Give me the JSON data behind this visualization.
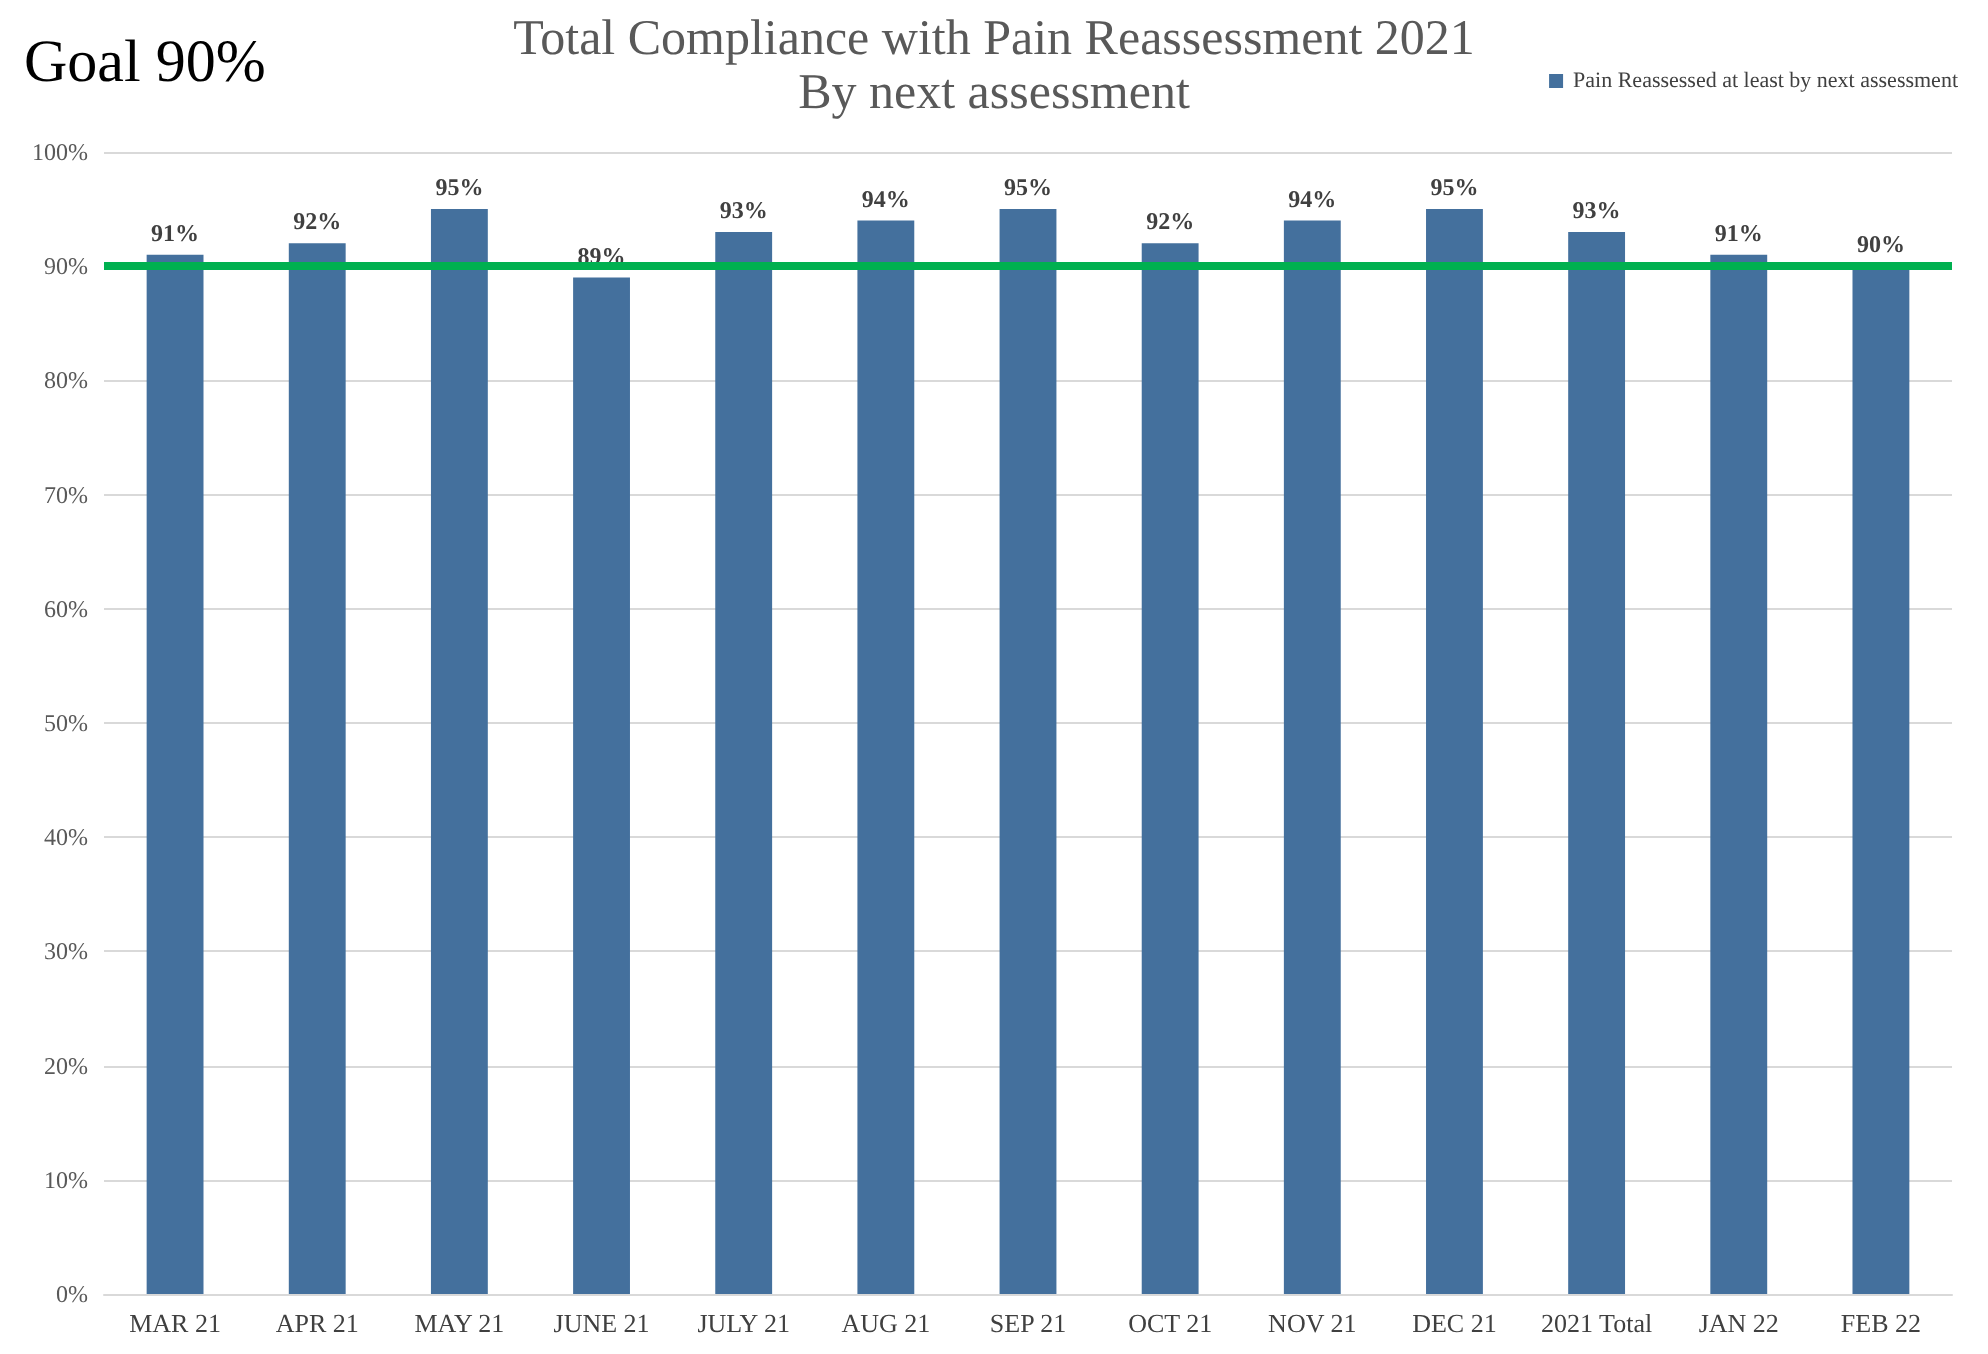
{
  "chart_data": {
    "type": "bar",
    "title": "Total Compliance with Pain Reassessment 2021",
    "subtitle": "By next assessment",
    "categories": [
      "MAR 21",
      "APR 21",
      "MAY 21",
      "JUNE 21",
      "JULY 21",
      "AUG 21",
      "SEP 21",
      "OCT 21",
      "NOV 21",
      "DEC 21",
      "2021 Total",
      "JAN 22",
      "FEB 22"
    ],
    "series": [
      {
        "name": "Pain Reassessed at least by next assessment",
        "color": "#44709d",
        "values": [
          91,
          92,
          95,
          89,
          93,
          94,
          95,
          92,
          94,
          95,
          93,
          91,
          90
        ],
        "value_labels": [
          "91%",
          "92%",
          "95%",
          "89%",
          "93%",
          "94%",
          "95%",
          "92%",
          "94%",
          "95%",
          "93%",
          "91%",
          "90%"
        ]
      }
    ],
    "ylim": [
      0,
      100
    ],
    "yticks": [
      {
        "value": 0,
        "label": "0%"
      },
      {
        "value": 10,
        "label": "10%"
      },
      {
        "value": 20,
        "label": "20%"
      },
      {
        "value": 30,
        "label": "30%"
      },
      {
        "value": 40,
        "label": "40%"
      },
      {
        "value": 50,
        "label": "50%"
      },
      {
        "value": 60,
        "label": "60%"
      },
      {
        "value": 70,
        "label": "70%"
      },
      {
        "value": 80,
        "label": "80%"
      },
      {
        "value": 90,
        "label": "90%"
      },
      {
        "value": 100,
        "label": "100%"
      }
    ],
    "ref_lines": [
      {
        "axis": "y",
        "value": 90,
        "label": "Goal 90%",
        "color": "#00b050"
      }
    ],
    "grid": "y",
    "legend": "top right"
  }
}
